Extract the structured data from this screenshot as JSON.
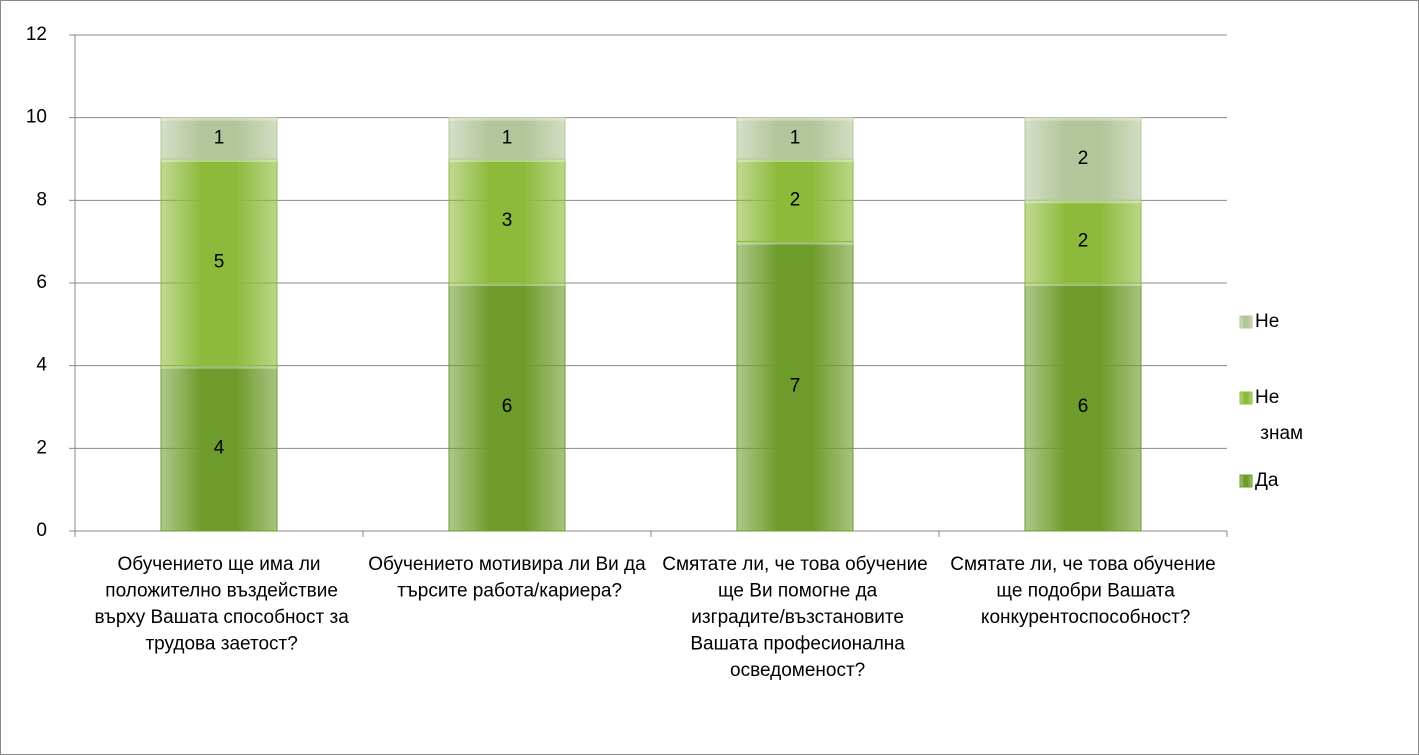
{
  "chart_data": {
    "type": "stacked_bar",
    "categories": [
      "Обучението ще има ли положително въздействие върху Вашата способност за трудова заетост?",
      "Обучението мотивира ли Ви да търсите работа/кариера?",
      "Смятате ли, че това обучение ще Ви помогне да изградите/възстановите Вашата професионална осведоменост?",
      "Смятате ли, че това обучение ще подобри Вашата конкурентоспособност?"
    ],
    "series": [
      {
        "name": "Да",
        "color": "#6e9c2c",
        "values": [
          4,
          6,
          7,
          6
        ]
      },
      {
        "name": "Не знам",
        "color": "#8cbb3c",
        "values": [
          5,
          3,
          2,
          2
        ]
      },
      {
        "name": "Не",
        "color": "#b3c59a",
        "values": [
          1,
          1,
          1,
          2
        ]
      }
    ],
    "ylim": [
      0,
      12
    ],
    "yticks": [
      0,
      2,
      4,
      6,
      8,
      10,
      12
    ],
    "grid": true,
    "legend": "right"
  }
}
